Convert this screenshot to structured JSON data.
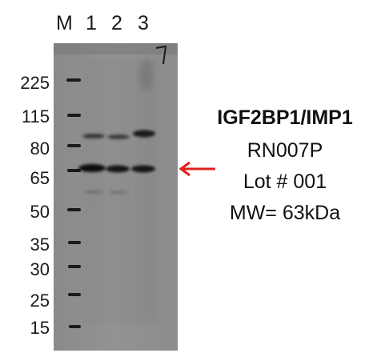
{
  "lanes": {
    "marker": "M",
    "lane1": "1",
    "lane2": "2",
    "lane3": "3"
  },
  "marker_labels": [
    "225",
    "115",
    "80",
    "65",
    "50",
    "35",
    "30",
    "25",
    "15"
  ],
  "info": {
    "title": "IGF2BP1/IMP1",
    "catalog": "RN007P",
    "lot": "Lot # 001",
    "mw": "MW= 63kDa"
  },
  "colors": {
    "membrane": "#8e8e8e",
    "band": "#141414",
    "arrow": "#e0201c"
  }
}
